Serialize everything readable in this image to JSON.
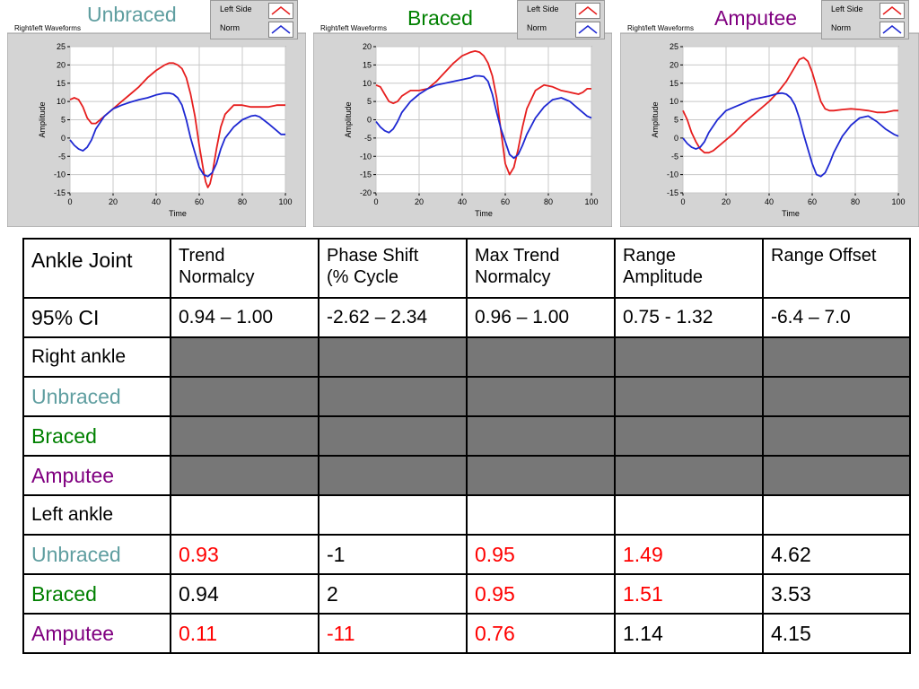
{
  "colors": {
    "red": "#e61e1e",
    "blue": "#1e28d2",
    "unbraced": "#5f9ea0",
    "braced": "#008000",
    "amputee": "#800080"
  },
  "chart_data": [
    {
      "type": "line",
      "title": "Unbraced",
      "title_color": "#5f9ea0",
      "panel_label": "Right/left Waveforms",
      "xlabel": "Time",
      "ylabel": "Amplitude",
      "xlim": [
        0,
        100
      ],
      "ylim": [
        -15,
        25
      ],
      "xticks": [
        0,
        20,
        40,
        60,
        80,
        100
      ],
      "yticks": [
        -15,
        -10,
        -5,
        0,
        5,
        10,
        15,
        20,
        25
      ],
      "grid": true,
      "legend": "top-right",
      "series": [
        {
          "name": "Left Side",
          "color": "red",
          "x": [
            0,
            2,
            4,
            6,
            8,
            10,
            12,
            16,
            20,
            24,
            28,
            32,
            36,
            40,
            44,
            46,
            48,
            50,
            52,
            54,
            56,
            58,
            60,
            62,
            63,
            64,
            65,
            66,
            68,
            70,
            72,
            76,
            80,
            84,
            88,
            92,
            96,
            100
          ],
          "y": [
            10.5,
            11,
            10.5,
            8.5,
            5.5,
            4,
            4,
            6,
            8,
            10,
            12,
            14,
            16.5,
            18.5,
            20,
            20.5,
            20.5,
            20,
            19,
            16.5,
            12,
            6,
            -2,
            -9,
            -12,
            -13.5,
            -12.5,
            -10,
            -3,
            3,
            6.5,
            9,
            9,
            8.5,
            8.5,
            8.5,
            9,
            9
          ]
        },
        {
          "name": "Norm",
          "color": "blue",
          "x": [
            0,
            2,
            4,
            6,
            8,
            10,
            12,
            16,
            20,
            24,
            28,
            32,
            36,
            40,
            44,
            46,
            48,
            50,
            52,
            54,
            56,
            58,
            60,
            62,
            64,
            66,
            68,
            70,
            72,
            76,
            80,
            84,
            86,
            88,
            92,
            96,
            98,
            100
          ],
          "y": [
            -0.5,
            -2,
            -3,
            -3.5,
            -2.5,
            -0.5,
            2.5,
            6,
            8,
            9,
            9.8,
            10.5,
            11,
            11.8,
            12.3,
            12.3,
            12,
            11,
            9,
            5,
            0,
            -4,
            -8,
            -10,
            -10.5,
            -9.5,
            -7,
            -3,
            0,
            3,
            5,
            6,
            6.2,
            5.8,
            4,
            2,
            1,
            1
          ]
        }
      ]
    },
    {
      "type": "line",
      "title": "Braced",
      "title_color": "#008000",
      "panel_label": "Right/left Waveforms",
      "xlabel": "Time",
      "ylabel": "Amplitude",
      "xlim": [
        0,
        100
      ],
      "ylim": [
        -20,
        20
      ],
      "xticks": [
        0,
        20,
        40,
        60,
        80,
        100
      ],
      "yticks": [
        -20,
        -15,
        -10,
        -5,
        0,
        5,
        10,
        15,
        20
      ],
      "grid": true,
      "legend": "top-right",
      "series": [
        {
          "name": "Left Side",
          "color": "red",
          "x": [
            0,
            2,
            4,
            6,
            8,
            10,
            12,
            16,
            20,
            24,
            28,
            32,
            36,
            40,
            44,
            46,
            48,
            50,
            52,
            54,
            56,
            58,
            60,
            62,
            64,
            66,
            68,
            70,
            74,
            78,
            82,
            86,
            90,
            94,
            96,
            98,
            100
          ],
          "y": [
            9.5,
            9,
            7,
            5,
            4.5,
            5,
            6.5,
            8,
            8,
            8.5,
            10.5,
            13,
            15.5,
            17.5,
            18.5,
            18.8,
            18.5,
            17.5,
            15.5,
            12,
            6,
            -3,
            -12,
            -15,
            -13,
            -8,
            -2,
            3,
            8,
            9.5,
            9,
            8,
            7.5,
            7,
            7.5,
            8.5,
            8.5
          ]
        },
        {
          "name": "Norm",
          "color": "blue",
          "x": [
            0,
            2,
            4,
            6,
            8,
            10,
            12,
            16,
            20,
            24,
            28,
            32,
            36,
            40,
            44,
            46,
            48,
            50,
            52,
            54,
            56,
            58,
            60,
            62,
            64,
            66,
            68,
            70,
            74,
            78,
            82,
            86,
            90,
            94,
            98,
            100
          ],
          "y": [
            -0.5,
            -2,
            -3,
            -3.5,
            -2.5,
            -0.5,
            2,
            5,
            7,
            8.5,
            9.5,
            10,
            10.5,
            11,
            11.5,
            12,
            12,
            11.8,
            10.5,
            7,
            2,
            -2.5,
            -6,
            -9.5,
            -10.5,
            -9.5,
            -7,
            -4,
            0.5,
            3.5,
            5.5,
            6,
            5,
            3,
            1,
            0.5
          ]
        }
      ]
    },
    {
      "type": "line",
      "title": "Amputee",
      "title_color": "#800080",
      "panel_label": "Right/left Waveforms",
      "xlabel": "Time",
      "ylabel": "Amplitude",
      "xlim": [
        0,
        100
      ],
      "ylim": [
        -15,
        25
      ],
      "xticks": [
        0,
        20,
        40,
        60,
        80,
        100
      ],
      "yticks": [
        -15,
        -10,
        -5,
        0,
        5,
        10,
        15,
        20,
        25
      ],
      "grid": true,
      "legend": "top-right",
      "series": [
        {
          "name": "Left Side",
          "color": "red",
          "x": [
            0,
            2,
            4,
            6,
            8,
            10,
            12,
            14,
            16,
            20,
            24,
            28,
            32,
            36,
            40,
            44,
            48,
            50,
            52,
            54,
            56,
            58,
            60,
            62,
            64,
            66,
            68,
            70,
            74,
            78,
            82,
            86,
            90,
            94,
            98,
            100
          ],
          "y": [
            7.5,
            5,
            1.5,
            -1,
            -3,
            -4,
            -4,
            -3.5,
            -2.5,
            -0.5,
            1.5,
            4,
            6,
            8,
            10,
            12.5,
            15.5,
            17.5,
            19.5,
            21.5,
            22,
            21,
            18,
            14,
            10,
            8,
            7.5,
            7.5,
            7.8,
            8,
            7.8,
            7.5,
            7,
            7,
            7.5,
            7.5
          ]
        },
        {
          "name": "Norm",
          "color": "blue",
          "x": [
            0,
            2,
            4,
            6,
            8,
            10,
            12,
            16,
            20,
            24,
            28,
            32,
            36,
            40,
            44,
            46,
            48,
            50,
            52,
            54,
            56,
            58,
            60,
            62,
            64,
            66,
            68,
            70,
            74,
            78,
            82,
            86,
            90,
            94,
            98,
            100
          ],
          "y": [
            0,
            -1.5,
            -2.5,
            -3,
            -2.5,
            -1,
            1.5,
            5,
            7.5,
            8.5,
            9.5,
            10.5,
            11,
            11.5,
            12.2,
            12.3,
            12,
            11,
            9,
            5.5,
            1,
            -3,
            -7,
            -10,
            -10.5,
            -9.5,
            -7,
            -4,
            0.5,
            3.5,
            5.5,
            6,
            4.5,
            2.5,
            1,
            0.5
          ]
        }
      ]
    }
  ],
  "table": {
    "corner": "Ankle Joint",
    "headers": [
      [
        "Trend",
        "Normalcy"
      ],
      [
        "Phase Shift",
        "(% Cycle"
      ],
      [
        "Max Trend",
        "Normalcy"
      ],
      [
        "Range",
        "Amplitude"
      ],
      [
        "Range Offset",
        ""
      ]
    ],
    "ci": {
      "label": "95% CI",
      "values": [
        "0.94 – 1.00",
        "-2.62 – 2.34",
        "0.96 – 1.00",
        "0.75 - 1.32",
        "-6.4 – 7.0"
      ]
    },
    "rows": [
      {
        "label": "Right ankle",
        "label_color": "#000000",
        "shaded": true,
        "values": [
          "",
          "",
          "",
          "",
          ""
        ],
        "colors": [
          "",
          "",
          "",
          "",
          ""
        ]
      },
      {
        "label": "Unbraced",
        "label_color": "#5f9ea0",
        "shaded": true,
        "values": [
          "",
          "",
          "",
          "",
          ""
        ],
        "colors": [
          "",
          "",
          "",
          "",
          ""
        ]
      },
      {
        "label": "Braced",
        "label_color": "#008000",
        "shaded": true,
        "values": [
          "",
          "",
          "",
          "",
          ""
        ],
        "colors": [
          "",
          "",
          "",
          "",
          ""
        ]
      },
      {
        "label": "Amputee",
        "label_color": "#800080",
        "shaded": true,
        "values": [
          "",
          "",
          "",
          "",
          ""
        ],
        "colors": [
          "",
          "",
          "",
          "",
          ""
        ]
      },
      {
        "label": "Left ankle",
        "label_color": "#000000",
        "shaded": false,
        "values": [
          "",
          "",
          "",
          "",
          ""
        ],
        "colors": [
          "",
          "",
          "",
          "",
          ""
        ]
      },
      {
        "label": "Unbraced",
        "label_color": "#5f9ea0",
        "shaded": false,
        "values": [
          "0.93",
          "-1",
          "0.95",
          "1.49",
          "4.62"
        ],
        "colors": [
          "#ff0000",
          "#000000",
          "#ff0000",
          "#ff0000",
          "#000000"
        ]
      },
      {
        "label": "Braced",
        "label_color": "#008000",
        "shaded": false,
        "values": [
          "0.94",
          "2",
          "0.95",
          "1.51",
          "3.53"
        ],
        "colors": [
          "#000000",
          "#000000",
          "#ff0000",
          "#ff0000",
          "#000000"
        ]
      },
      {
        "label": "Amputee",
        "label_color": "#800080",
        "shaded": false,
        "values": [
          "0.11",
          "-11",
          "0.76",
          "1.14",
          "4.15"
        ],
        "colors": [
          "#ff0000",
          "#ff0000",
          "#ff0000",
          "#000000",
          "#000000"
        ]
      }
    ]
  }
}
